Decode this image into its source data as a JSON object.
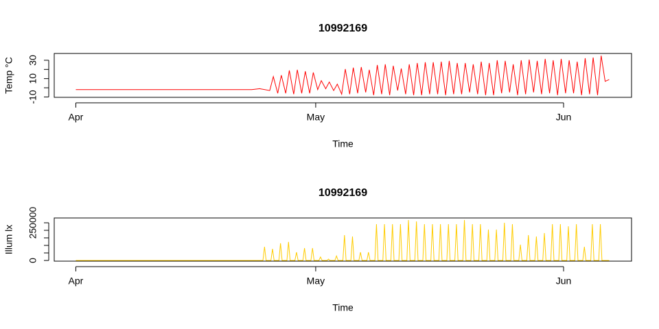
{
  "chart_data": [
    {
      "type": "line",
      "title": "10992169",
      "xlabel": "Time",
      "ylabel": "Temp °C",
      "color": "#ff0000",
      "x": [
        0,
        22,
        23,
        24.25,
        24.7,
        25.25,
        25.7,
        26.25,
        26.7,
        27.25,
        27.7,
        28.25,
        28.7,
        29.25,
        29.7,
        30.25,
        30.7,
        31.25,
        31.7,
        32.25,
        32.7,
        33.25,
        33.7,
        34.25,
        34.7,
        35.25,
        35.7,
        36.25,
        36.7,
        37.25,
        37.7,
        38.25,
        38.7,
        39.25,
        39.7,
        40.25,
        40.7,
        41.25,
        41.7,
        42.25,
        42.7,
        43.25,
        43.7,
        44.25,
        44.7,
        45.25,
        45.7,
        46.25,
        46.7,
        47.25,
        47.7,
        48.25,
        48.7,
        49.25,
        49.7,
        50.25,
        50.7,
        51.25,
        51.7,
        52.25,
        52.7,
        53.25,
        53.7,
        54.25,
        54.7,
        55.25,
        55.7,
        56.25,
        56.7,
        57.25,
        57.7,
        58.25,
        58.7,
        59.25,
        59.7,
        60.25,
        60.7,
        61.25,
        61.7,
        62.25,
        62.7,
        63.25,
        63.7,
        64.25,
        64.7,
        65.25,
        65.7,
        66.2,
        66.7
      ],
      "values": [
        -2,
        -2,
        -1,
        -3,
        12.2,
        -6,
        13.7,
        -6,
        18.9,
        -7,
        19.6,
        -6,
        18,
        -6,
        16.7,
        -2,
        7.8,
        -1,
        6.3,
        -3,
        4,
        -7,
        20.4,
        -7,
        21.9,
        -6,
        22.6,
        -5,
        19.6,
        -8,
        24.8,
        -7,
        25.6,
        -8,
        24,
        -3,
        21,
        -7,
        25.6,
        -8,
        27,
        -8,
        27.8,
        -7,
        27.8,
        -7,
        28.5,
        -8,
        29.3,
        -7,
        27,
        -7,
        27,
        -5,
        25.6,
        -7,
        28.5,
        -8,
        27,
        -8,
        30,
        -6,
        29.3,
        -5,
        25.6,
        -8,
        30,
        -7,
        30.7,
        -5,
        29.3,
        -7,
        31.5,
        -6,
        30,
        -8,
        31.5,
        -6,
        30,
        -6,
        28.5,
        -8,
        32.2,
        -7,
        33,
        -8,
        35,
        7,
        9
      ],
      "xlim": [
        -2.7,
        69.5
      ],
      "xticks": [
        {
          "value": 0,
          "label": "Apr"
        },
        {
          "value": 30,
          "label": "May"
        },
        {
          "value": 61,
          "label": "Jun"
        }
      ],
      "ylim": [
        -10.4,
        37.4
      ],
      "yticks": [
        -10,
        10,
        30
      ],
      "yminor": [
        0,
        20
      ]
    },
    {
      "type": "line",
      "title": "10992169",
      "xlabel": "Time",
      "ylabel": "Illum lx",
      "color": "#ffcc00",
      "x": [
        0,
        23.4,
        23.6,
        23.8,
        24.4,
        24.6,
        24.8,
        25.4,
        25.6,
        25.8,
        26.4,
        26.6,
        26.8,
        27.4,
        27.6,
        27.8,
        28.4,
        28.6,
        28.8,
        29.4,
        29.6,
        29.8,
        30.4,
        30.6,
        30.8,
        31.4,
        31.6,
        31.8,
        32.4,
        32.6,
        32.8,
        33.4,
        33.6,
        33.8,
        34.4,
        34.6,
        34.8,
        35.4,
        35.6,
        35.8,
        36.4,
        36.6,
        36.8,
        37.4,
        37.6,
        37.8,
        38.4,
        38.6,
        38.8,
        39.4,
        39.6,
        39.8,
        40.4,
        40.6,
        40.8,
        41.4,
        41.6,
        41.8,
        42.4,
        42.6,
        42.8,
        43.4,
        43.6,
        43.8,
        44.4,
        44.6,
        44.8,
        45.4,
        45.6,
        45.8,
        46.4,
        46.6,
        46.8,
        47.4,
        47.6,
        47.8,
        48.4,
        48.6,
        48.8,
        49.4,
        49.6,
        49.8,
        50.4,
        50.6,
        50.8,
        51.4,
        51.6,
        51.8,
        52.4,
        52.6,
        52.8,
        53.4,
        53.6,
        53.8,
        54.4,
        54.6,
        54.8,
        55.4,
        55.6,
        55.8,
        56.4,
        56.6,
        56.8,
        57.4,
        57.6,
        57.8,
        58.4,
        58.6,
        58.8,
        59.4,
        59.6,
        59.8,
        60.4,
        60.6,
        60.8,
        61.4,
        61.6,
        61.8,
        62.4,
        62.6,
        62.8,
        63.4,
        63.6,
        63.8,
        64.4,
        64.6,
        64.8,
        65.4,
        65.6,
        65.8,
        66.7
      ],
      "values": [
        0,
        0,
        91000,
        0,
        0,
        77000,
        0,
        0,
        114000,
        0,
        0,
        123000,
        0,
        0,
        55000,
        0,
        0,
        82000,
        0,
        0,
        82000,
        0,
        0,
        23000,
        0,
        0,
        9000,
        0,
        0,
        30000,
        0,
        0,
        168000,
        0,
        0,
        159000,
        0,
        0,
        55000,
        0,
        0,
        55000,
        0,
        0,
        241000,
        0,
        0,
        241000,
        0,
        0,
        241000,
        0,
        0,
        241000,
        0,
        0,
        268000,
        0,
        0,
        259000,
        0,
        0,
        241000,
        0,
        0,
        241000,
        0,
        0,
        241000,
        0,
        0,
        241000,
        0,
        0,
        241000,
        0,
        0,
        268000,
        0,
        0,
        241000,
        0,
        0,
        241000,
        0,
        0,
        205000,
        0,
        0,
        205000,
        0,
        0,
        250000,
        0,
        0,
        241000,
        0,
        0,
        105000,
        0,
        0,
        168000,
        0,
        0,
        159000,
        0,
        0,
        182000,
        0,
        0,
        241000,
        0,
        0,
        241000,
        0,
        0,
        227000,
        0,
        0,
        241000,
        0,
        0,
        91000,
        0,
        0,
        241000,
        0,
        0,
        241000,
        0,
        0
      ],
      "xlim": [
        -2.7,
        69.5
      ],
      "xticks": [
        {
          "value": 0,
          "label": "Apr"
        },
        {
          "value": 30,
          "label": "May"
        },
        {
          "value": 61,
          "label": "Jun"
        }
      ],
      "ylim": [
        -4500,
        282000
      ],
      "yticks": [
        0,
        250000
      ],
      "yminor": [
        50000,
        100000,
        150000,
        200000
      ]
    }
  ]
}
